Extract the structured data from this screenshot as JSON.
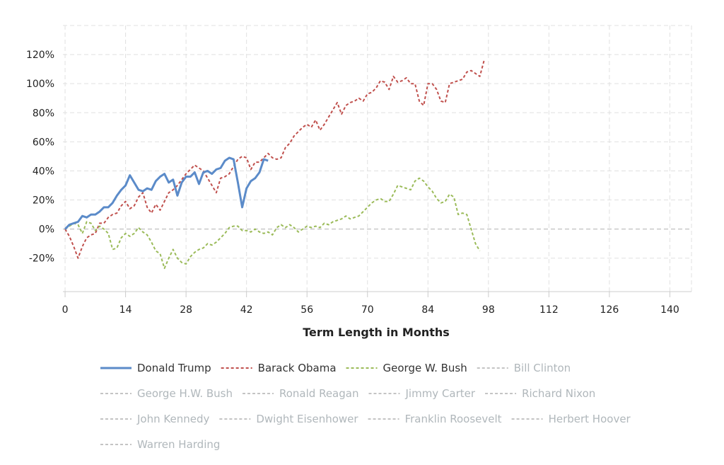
{
  "chart_data": {
    "type": "line",
    "xlabel": "Term Length in Months",
    "ylabel": "",
    "xlim": [
      -0.5,
      145
    ],
    "ylim": [
      -43,
      140
    ],
    "xticks": [
      0,
      14,
      28,
      42,
      56,
      70,
      84,
      98,
      112,
      126,
      140
    ],
    "yticks": [
      -20,
      0,
      20,
      40,
      60,
      80,
      100,
      120
    ],
    "y_tick_suffix": "%",
    "grid": true,
    "legend_position": "bottom",
    "series": [
      {
        "name": "Donald Trump",
        "active": true,
        "color": "#5b8bc9",
        "style": "solid",
        "points": [
          [
            0,
            0
          ],
          [
            1,
            3
          ],
          [
            2,
            4
          ],
          [
            3,
            5
          ],
          [
            4,
            9
          ],
          [
            5,
            8
          ],
          [
            6,
            10
          ],
          [
            7,
            10
          ],
          [
            8,
            12
          ],
          [
            9,
            15
          ],
          [
            10,
            15
          ],
          [
            11,
            18
          ],
          [
            12,
            23
          ],
          [
            13,
            27
          ],
          [
            14,
            30
          ],
          [
            15,
            37
          ],
          [
            16,
            32
          ],
          [
            17,
            27
          ],
          [
            18,
            26
          ],
          [
            19,
            28
          ],
          [
            20,
            27
          ],
          [
            21,
            33
          ],
          [
            22,
            36
          ],
          [
            23,
            38
          ],
          [
            24,
            32
          ],
          [
            25,
            34
          ],
          [
            26,
            23
          ],
          [
            27,
            32
          ],
          [
            28,
            36
          ],
          [
            29,
            36
          ],
          [
            30,
            39
          ],
          [
            31,
            31
          ],
          [
            32,
            39
          ],
          [
            33,
            40
          ],
          [
            34,
            38
          ],
          [
            35,
            41
          ],
          [
            36,
            42
          ],
          [
            37,
            47
          ],
          [
            38,
            49
          ],
          [
            39,
            48
          ],
          [
            40,
            32
          ],
          [
            41,
            15
          ],
          [
            42,
            28
          ],
          [
            43,
            33
          ],
          [
            44,
            35
          ],
          [
            45,
            39
          ],
          [
            46,
            48
          ],
          [
            47,
            47
          ]
        ]
      },
      {
        "name": "Barack Obama",
        "active": true,
        "color": "#c0504d",
        "style": "dashed",
        "points": [
          [
            0,
            0
          ],
          [
            1,
            -5
          ],
          [
            2,
            -12
          ],
          [
            3,
            -20
          ],
          [
            4,
            -12
          ],
          [
            5,
            -6
          ],
          [
            6,
            -4
          ],
          [
            7,
            -3
          ],
          [
            8,
            4
          ],
          [
            9,
            4
          ],
          [
            10,
            8
          ],
          [
            11,
            10
          ],
          [
            12,
            11
          ],
          [
            13,
            16
          ],
          [
            14,
            19
          ],
          [
            15,
            14
          ],
          [
            16,
            16
          ],
          [
            17,
            22
          ],
          [
            18,
            25
          ],
          [
            19,
            15
          ],
          [
            20,
            11
          ],
          [
            21,
            17
          ],
          [
            22,
            13
          ],
          [
            23,
            19
          ],
          [
            24,
            25
          ],
          [
            25,
            27
          ],
          [
            26,
            30
          ],
          [
            27,
            34
          ],
          [
            28,
            38
          ],
          [
            29,
            41
          ],
          [
            30,
            44
          ],
          [
            31,
            42
          ],
          [
            32,
            40
          ],
          [
            33,
            35
          ],
          [
            34,
            30
          ],
          [
            35,
            25
          ],
          [
            36,
            35
          ],
          [
            37,
            36
          ],
          [
            38,
            38
          ],
          [
            39,
            43
          ],
          [
            40,
            48
          ],
          [
            41,
            50
          ],
          [
            42,
            49
          ],
          [
            43,
            41
          ],
          [
            44,
            46
          ],
          [
            45,
            46
          ],
          [
            46,
            49
          ],
          [
            47,
            52
          ],
          [
            48,
            49
          ],
          [
            49,
            48
          ],
          [
            50,
            49
          ],
          [
            51,
            56
          ],
          [
            52,
            59
          ],
          [
            53,
            64
          ],
          [
            54,
            67
          ],
          [
            55,
            70
          ],
          [
            56,
            72
          ],
          [
            57,
            70
          ],
          [
            58,
            75
          ],
          [
            59,
            68
          ],
          [
            60,
            72
          ],
          [
            61,
            77
          ],
          [
            62,
            82
          ],
          [
            63,
            87
          ],
          [
            64,
            79
          ],
          [
            65,
            85
          ],
          [
            66,
            87
          ],
          [
            67,
            88
          ],
          [
            68,
            90
          ],
          [
            69,
            88
          ],
          [
            70,
            93
          ],
          [
            71,
            94
          ],
          [
            72,
            97
          ],
          [
            73,
            102
          ],
          [
            74,
            101
          ],
          [
            75,
            96
          ],
          [
            76,
            105
          ],
          [
            77,
            101
          ],
          [
            78,
            102
          ],
          [
            79,
            104
          ],
          [
            80,
            100
          ],
          [
            81,
            100
          ],
          [
            82,
            88
          ],
          [
            83,
            85
          ],
          [
            84,
            100
          ],
          [
            85,
            100
          ],
          [
            86,
            96
          ],
          [
            87,
            88
          ],
          [
            88,
            87
          ],
          [
            89,
            100
          ],
          [
            90,
            101
          ],
          [
            91,
            102
          ],
          [
            92,
            103
          ],
          [
            93,
            108
          ],
          [
            94,
            109
          ],
          [
            95,
            107
          ],
          [
            96,
            105
          ],
          [
            97,
            116
          ]
        ]
      },
      {
        "name": "George W. Bush",
        "active": true,
        "color": "#9bbb59",
        "style": "dashed",
        "points": [
          [
            0,
            0
          ],
          [
            1,
            2
          ],
          [
            2,
            4
          ],
          [
            3,
            3
          ],
          [
            4,
            -3
          ],
          [
            5,
            5
          ],
          [
            6,
            4
          ],
          [
            7,
            -1
          ],
          [
            8,
            2
          ],
          [
            9,
            0
          ],
          [
            10,
            -3
          ],
          [
            11,
            -14
          ],
          [
            12,
            -13
          ],
          [
            13,
            -6
          ],
          [
            14,
            -3
          ],
          [
            15,
            -5
          ],
          [
            16,
            -3
          ],
          [
            17,
            1
          ],
          [
            18,
            -2
          ],
          [
            19,
            -4
          ],
          [
            20,
            -9
          ],
          [
            21,
            -15
          ],
          [
            22,
            -17
          ],
          [
            23,
            -27
          ],
          [
            24,
            -20
          ],
          [
            25,
            -14
          ],
          [
            26,
            -20
          ],
          [
            27,
            -23
          ],
          [
            28,
            -24
          ],
          [
            29,
            -19
          ],
          [
            30,
            -16
          ],
          [
            31,
            -14
          ],
          [
            32,
            -13
          ],
          [
            33,
            -10
          ],
          [
            34,
            -11
          ],
          [
            35,
            -9
          ],
          [
            36,
            -6
          ],
          [
            37,
            -3
          ],
          [
            38,
            1
          ],
          [
            39,
            2
          ],
          [
            40,
            2
          ],
          [
            41,
            -1
          ],
          [
            42,
            -1
          ],
          [
            43,
            -2
          ],
          [
            44,
            0
          ],
          [
            45,
            -2
          ],
          [
            46,
            -3
          ],
          [
            47,
            -2
          ],
          [
            48,
            -4
          ],
          [
            49,
            1
          ],
          [
            50,
            3
          ],
          [
            51,
            1
          ],
          [
            52,
            3
          ],
          [
            53,
            1
          ],
          [
            54,
            -2
          ],
          [
            55,
            0
          ],
          [
            56,
            2
          ],
          [
            57,
            1
          ],
          [
            58,
            2
          ],
          [
            59,
            1
          ],
          [
            60,
            4
          ],
          [
            61,
            3
          ],
          [
            62,
            5
          ],
          [
            63,
            6
          ],
          [
            64,
            7
          ],
          [
            65,
            9
          ],
          [
            66,
            7
          ],
          [
            67,
            8
          ],
          [
            68,
            9
          ],
          [
            69,
            12
          ],
          [
            70,
            15
          ],
          [
            71,
            18
          ],
          [
            72,
            20
          ],
          [
            73,
            21
          ],
          [
            74,
            19
          ],
          [
            75,
            19
          ],
          [
            76,
            24
          ],
          [
            77,
            30
          ],
          [
            78,
            29
          ],
          [
            79,
            28
          ],
          [
            80,
            27
          ],
          [
            81,
            33
          ],
          [
            82,
            35
          ],
          [
            83,
            33
          ],
          [
            84,
            29
          ],
          [
            85,
            26
          ],
          [
            86,
            21
          ],
          [
            87,
            18
          ],
          [
            88,
            19
          ],
          [
            89,
            24
          ],
          [
            90,
            22
          ],
          [
            91,
            10
          ],
          [
            92,
            11
          ],
          [
            93,
            10
          ],
          [
            94,
            0
          ],
          [
            95,
            -10
          ],
          [
            96,
            -15
          ]
        ]
      },
      {
        "name": "Bill Clinton",
        "active": false,
        "color": "#cccccc",
        "style": "dashed",
        "points": []
      },
      {
        "name": "George H.W. Bush",
        "active": false,
        "color": "#cccccc",
        "style": "dashed",
        "points": []
      },
      {
        "name": "Ronald Reagan",
        "active": false,
        "color": "#cccccc",
        "style": "dashed",
        "points": []
      },
      {
        "name": "Jimmy Carter",
        "active": false,
        "color": "#cccccc",
        "style": "dashed",
        "points": []
      },
      {
        "name": "Richard Nixon",
        "active": false,
        "color": "#cccccc",
        "style": "dashed",
        "points": []
      },
      {
        "name": "John Kennedy",
        "active": false,
        "color": "#cccccc",
        "style": "dashed",
        "points": []
      },
      {
        "name": "Dwight Eisenhower",
        "active": false,
        "color": "#cccccc",
        "style": "dashed",
        "points": []
      },
      {
        "name": "Franklin Roosevelt",
        "active": false,
        "color": "#cccccc",
        "style": "dashed",
        "points": []
      },
      {
        "name": "Herbert Hoover",
        "active": false,
        "color": "#cccccc",
        "style": "dashed",
        "points": []
      },
      {
        "name": "Warren Harding",
        "active": false,
        "color": "#cccccc",
        "style": "dashed",
        "points": []
      }
    ]
  },
  "colors": {
    "grid": "#e0e0e0",
    "zero_line": "#c8c8c8",
    "axis": "#cccccc",
    "legend_active_text": "#333333",
    "legend_inactive_text": "#b0b7bb"
  }
}
